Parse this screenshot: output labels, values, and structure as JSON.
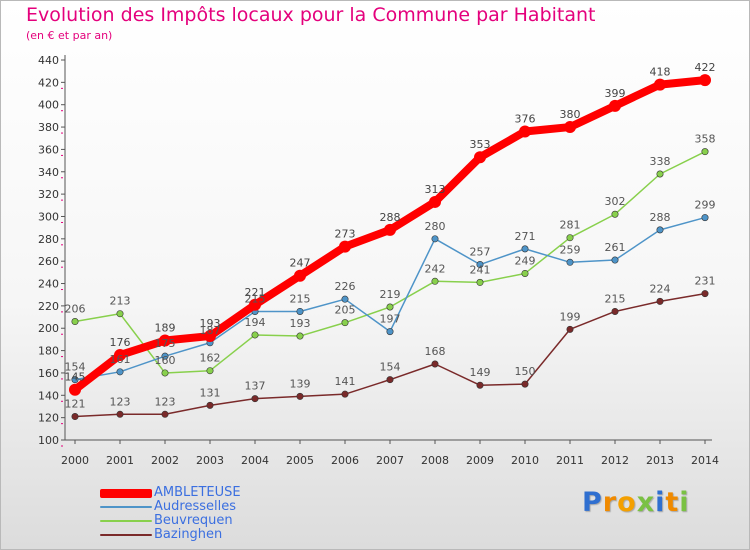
{
  "chart_data": {
    "type": "line",
    "title": "Evolution des Impôts locaux pour la Commune par Habitant",
    "subtitle": "(en € et par an)",
    "x": [
      "2000",
      "2001",
      "2002",
      "2003",
      "2004",
      "2005",
      "2006",
      "2007",
      "2008",
      "2009",
      "2010",
      "2011",
      "2012",
      "2013",
      "2014"
    ],
    "ylim": [
      100,
      440
    ],
    "yticks": [
      100,
      120,
      140,
      160,
      180,
      200,
      220,
      240,
      260,
      280,
      300,
      320,
      340,
      360,
      380,
      400,
      420,
      440
    ],
    "grid": false,
    "legend_position": "bottom-left",
    "series": [
      {
        "name": "AMBLETEUSE",
        "color": "#ff0000",
        "labelColor": "#444444",
        "highlight": true,
        "values": [
          145,
          176,
          189,
          193,
          221,
          247,
          273,
          288,
          313,
          353,
          376,
          380,
          399,
          418,
          422
        ],
        "labels": [
          "145",
          "176",
          "189",
          "193",
          "221",
          "247",
          "273",
          "288",
          "313",
          "353",
          "376",
          "380",
          "399",
          "418",
          "422"
        ]
      },
      {
        "name": "Audresselles",
        "color": "#4e94c8",
        "labelColor": "#555555",
        "highlight": false,
        "values": [
          154,
          161,
          175,
          187,
          215,
          215,
          226,
          197,
          280,
          257,
          271,
          259,
          261,
          288,
          299
        ],
        "labels": [
          "154",
          "161",
          "175",
          "187",
          "215",
          "215",
          "226",
          "197",
          "280",
          "257",
          "271",
          "259",
          "261",
          "288",
          "299"
        ]
      },
      {
        "name": "Beuvrequen",
        "color": "#88d04c",
        "labelColor": "#555555",
        "highlight": false,
        "values": [
          206,
          213,
          160,
          162,
          194,
          193,
          205,
          219,
          242,
          241,
          249,
          281,
          302,
          338,
          358
        ],
        "labels": [
          "206",
          "213",
          "160",
          "162",
          "194",
          "193",
          "205",
          "219",
          "242",
          "241",
          "249",
          "281",
          "302",
          "338",
          "358"
        ]
      },
      {
        "name": "Bazinghen",
        "color": "#7a2a2a",
        "labelColor": "#555555",
        "highlight": false,
        "values": [
          121,
          123,
          123,
          131,
          137,
          139,
          141,
          154,
          168,
          149,
          150,
          199,
          215,
          224,
          231
        ],
        "labels": [
          "121",
          "123",
          "123",
          "131",
          "137",
          "139",
          "141",
          "154",
          "168",
          "149",
          "150",
          "199",
          "215",
          "224",
          "231"
        ]
      }
    ]
  },
  "legend": {
    "items": [
      {
        "label": "AMBLETEUSE",
        "color": "#ff0000",
        "textColor": "#3b6fe0"
      },
      {
        "label": "Audresselles",
        "color": "#4e94c8",
        "textColor": "#3b6fe0"
      },
      {
        "label": "Beuvrequen",
        "color": "#88d04c",
        "textColor": "#3b6fe0"
      },
      {
        "label": "Bazinghen",
        "color": "#7a2a2a",
        "textColor": "#3b6fe0"
      }
    ]
  },
  "logo": {
    "letters": [
      {
        "ch": "P",
        "color": "#2f6fd0"
      },
      {
        "ch": "r",
        "color": "#f08a00"
      },
      {
        "ch": "o",
        "color": "#f4a000"
      },
      {
        "ch": "x",
        "color": "#7ac143"
      },
      {
        "ch": "i",
        "color": "#2f6fd0"
      },
      {
        "ch": "t",
        "color": "#f08a00"
      },
      {
        "ch": "i",
        "color": "#7ac143"
      }
    ]
  }
}
